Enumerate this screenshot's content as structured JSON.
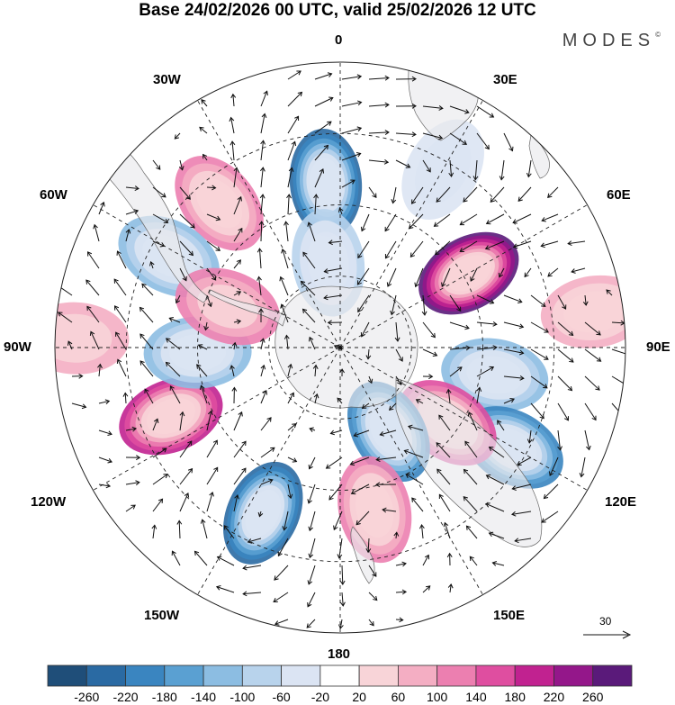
{
  "title": "Base 24/02/2026 00 UTC, valid 25/02/2026 12 UTC",
  "brand": "MODES",
  "brand_mark": "©",
  "longitude_labels": {
    "n": "0",
    "s": "180",
    "w": "90W",
    "e": "90E",
    "nw30": "30W",
    "ne30": "30E",
    "nw60": "60W",
    "ne60": "60E",
    "sw120": "120W",
    "se120": "120E",
    "sw150": "150W",
    "se150": "150E"
  },
  "vector_scale": "30",
  "colorbar": {
    "ticks": [
      "-260",
      "-220",
      "-180",
      "-140",
      "-100",
      "-60",
      "-20",
      "20",
      "60",
      "100",
      "140",
      "180",
      "220",
      "260"
    ],
    "colors": [
      "#1f4e79",
      "#2a6aa3",
      "#3a85c0",
      "#5aa0d2",
      "#8cbde2",
      "#b8d3ec",
      "#dbe4f3",
      "#ffffff",
      "#f8d4d8",
      "#f4aec3",
      "#ec7fb0",
      "#df4ea0",
      "#c12290",
      "#94178a",
      "#5a1a7a"
    ]
  },
  "anomaly_centers": [
    {
      "lon": -5,
      "r": 0.58,
      "value": -240
    },
    {
      "lon": 60,
      "r": 0.52,
      "value": 265
    },
    {
      "lon": -40,
      "r": 0.66,
      "value": 130
    },
    {
      "lon": 100,
      "r": 0.55,
      "value": -135
    },
    {
      "lon": 120,
      "r": 0.7,
      "value": -200
    },
    {
      "lon": 125,
      "r": 0.46,
      "value": 150
    },
    {
      "lon": 150,
      "r": 0.34,
      "value": -190
    },
    {
      "lon": -112,
      "r": 0.64,
      "value": 200
    },
    {
      "lon": -155,
      "r": 0.64,
      "value": -240
    },
    {
      "lon": 168,
      "r": 0.58,
      "value": 110
    },
    {
      "lon": -92,
      "r": 0.5,
      "value": -130
    },
    {
      "lon": -62,
      "r": 0.68,
      "value": -110
    },
    {
      "lon": -70,
      "r": 0.42,
      "value": 100
    },
    {
      "lon": 82,
      "r": 0.9,
      "value": 70
    },
    {
      "lon": -88,
      "r": 0.93,
      "value": 60
    },
    {
      "lon": -8,
      "r": 0.3,
      "value": -70
    },
    {
      "lon": 30,
      "r": 0.72,
      "value": -60
    }
  ]
}
